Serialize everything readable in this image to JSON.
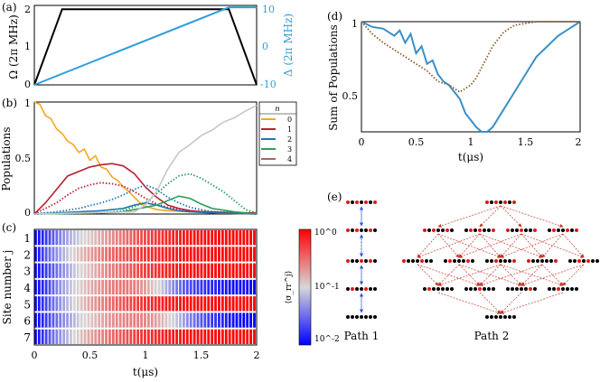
{
  "colors": {
    "omega": "#000000",
    "delta": "#2f9fdb",
    "pop0": "#f5a623",
    "pop1": "#b81f33",
    "pop2": "#1f77b4",
    "pop3": "#2e9e5a",
    "pop4": "#c7c7c7",
    "sum_blue": "#3a8fc8",
    "sum_brown": "#8b5a2b",
    "path1_arrow": "#3355dd",
    "path2_arrow": "#c0392b"
  },
  "panels": {
    "a": {
      "label": "(a)",
      "ylabel": "Ω (2π MHz)",
      "ylabel_right": "Δ (2π MHz)",
      "left_ticks": [
        "0",
        "1",
        "2"
      ],
      "right_ticks": [
        "-10",
        "0",
        "10"
      ]
    },
    "b": {
      "label": "(b)",
      "ylabel": "Populations",
      "yticks": [
        "0",
        "0.5",
        "1"
      ],
      "legend_title": "n",
      "legend": [
        "0",
        "1",
        "2",
        "3",
        "4"
      ]
    },
    "c": {
      "label": "(c)",
      "ylabel": "Site number j",
      "xlabel": "t(μs)",
      "xticks": [
        "0",
        "0.5",
        "1",
        "1.5",
        "2"
      ],
      "rows": [
        "1",
        "2",
        "3",
        "4",
        "5",
        "6",
        "7"
      ],
      "colorbar_label": "⟨σ_rr^j⟩",
      "colorbar_ticks": [
        "10^0",
        "10^-1",
        "10^-2"
      ]
    },
    "d": {
      "label": "(d)",
      "ylabel": "Sum of Populations",
      "xlabel": "t(μs)",
      "xticks": [
        "0",
        "0.5",
        "1",
        "1.5",
        "2"
      ],
      "yticks": [
        "0.5",
        "1"
      ]
    },
    "e": {
      "label": "(e)",
      "path1": "Path 1",
      "path2": "Path 2"
    }
  },
  "chart_data": [
    {
      "type": "line",
      "panel": "a",
      "title": "",
      "xlabel": "",
      "xlim": [
        0,
        2
      ],
      "series": [
        {
          "name": "Omega",
          "axis": "left",
          "ylim": [
            0,
            2.1
          ],
          "x": [
            0,
            0.25,
            1.75,
            2
          ],
          "y": [
            0,
            2,
            2,
            0
          ]
        },
        {
          "name": "Delta",
          "axis": "right",
          "ylim": [
            -10,
            10.5
          ],
          "x": [
            0,
            1.75,
            2
          ],
          "y": [
            -10,
            10,
            10
          ]
        }
      ]
    },
    {
      "type": "line",
      "panel": "b",
      "xlim": [
        0,
        2
      ],
      "ylim": [
        0,
        1
      ],
      "ylabel": "Populations",
      "series": [
        {
          "name": "0",
          "style": "solid",
          "x": [
            0,
            0.05,
            0.1,
            0.15,
            0.2,
            0.25,
            0.3,
            0.35,
            0.4,
            0.45,
            0.5,
            0.55,
            0.6,
            0.65,
            0.7,
            0.75,
            0.8,
            0.85,
            0.9,
            0.95,
            1.0,
            1.1,
            1.2,
            1.4,
            1.6,
            2
          ],
          "y": [
            1,
            0.98,
            0.88,
            0.85,
            0.76,
            0.72,
            0.65,
            0.62,
            0.55,
            0.58,
            0.48,
            0.52,
            0.42,
            0.4,
            0.33,
            0.3,
            0.24,
            0.2,
            0.15,
            0.1,
            0.07,
            0.04,
            0.03,
            0.02,
            0.01,
            0
          ]
        },
        {
          "name": "1",
          "style": "solid",
          "x": [
            0,
            0.1,
            0.2,
            0.3,
            0.4,
            0.5,
            0.6,
            0.7,
            0.8,
            0.9,
            1.0,
            1.1,
            1.2,
            1.3,
            1.4,
            1.5,
            1.6,
            1.8,
            2
          ],
          "y": [
            0,
            0.1,
            0.22,
            0.34,
            0.38,
            0.42,
            0.44,
            0.45,
            0.43,
            0.36,
            0.24,
            0.15,
            0.08,
            0.05,
            0.03,
            0.02,
            0.02,
            0.01,
            0.01
          ]
        },
        {
          "name": "1 (dotted)",
          "style": "dotted",
          "x": [
            0,
            0.1,
            0.2,
            0.3,
            0.4,
            0.5,
            0.6,
            0.7,
            0.8,
            0.9,
            1.0,
            1.1,
            1.2,
            1.4,
            1.6,
            2
          ],
          "y": [
            0,
            0.05,
            0.1,
            0.17,
            0.23,
            0.26,
            0.28,
            0.27,
            0.25,
            0.2,
            0.14,
            0.09,
            0.06,
            0.03,
            0.02,
            0.01
          ]
        },
        {
          "name": "2",
          "style": "solid",
          "x": [
            0,
            0.2,
            0.4,
            0.6,
            0.8,
            0.9,
            1.0,
            1.1,
            1.2,
            1.3,
            1.4,
            1.6,
            2
          ],
          "y": [
            0,
            0.01,
            0.02,
            0.03,
            0.05,
            0.08,
            0.1,
            0.08,
            0.05,
            0.03,
            0.02,
            0.01,
            0
          ]
        },
        {
          "name": "2 (dotted)",
          "style": "dotted",
          "x": [
            0,
            0.2,
            0.4,
            0.6,
            0.7,
            0.8,
            0.9,
            1.0,
            1.1,
            1.2,
            1.3,
            1.4,
            1.6,
            2
          ],
          "y": [
            0,
            0.02,
            0.05,
            0.1,
            0.13,
            0.17,
            0.22,
            0.26,
            0.22,
            0.15,
            0.1,
            0.06,
            0.02,
            0
          ]
        },
        {
          "name": "3",
          "style": "solid",
          "x": [
            0,
            0.6,
            0.8,
            0.9,
            1.0,
            1.1,
            1.2,
            1.3,
            1.4,
            1.5,
            1.6,
            1.8,
            2
          ],
          "y": [
            0,
            0.01,
            0.02,
            0.04,
            0.06,
            0.08,
            0.12,
            0.16,
            0.14,
            0.09,
            0.05,
            0.02,
            0
          ]
        },
        {
          "name": "3 (dotted)",
          "style": "dotted",
          "x": [
            0,
            0.6,
            0.8,
            1.0,
            1.1,
            1.2,
            1.3,
            1.4,
            1.5,
            1.6,
            1.7,
            1.8,
            1.9,
            2
          ],
          "y": [
            0,
            0.01,
            0.03,
            0.1,
            0.18,
            0.27,
            0.34,
            0.36,
            0.32,
            0.26,
            0.2,
            0.12,
            0.04,
            0.01
          ]
        },
        {
          "name": "4",
          "style": "solid",
          "x": [
            0,
            0.9,
            1.0,
            1.1,
            1.2,
            1.3,
            1.4,
            1.5,
            1.6,
            1.7,
            1.8,
            1.9,
            2
          ],
          "y": [
            0,
            0.02,
            0.08,
            0.2,
            0.4,
            0.55,
            0.62,
            0.7,
            0.75,
            0.82,
            0.86,
            0.92,
            0.97
          ]
        }
      ]
    },
    {
      "type": "heatmap",
      "panel": "c",
      "x_range": [
        0,
        2
      ],
      "rows": 7,
      "scale": "log",
      "clim": [
        0.005,
        1
      ],
      "x": [
        0,
        0.1,
        0.2,
        0.3,
        0.4,
        0.5,
        0.6,
        0.7,
        0.8,
        0.9,
        1.0,
        1.1,
        1.2,
        1.3,
        1.4,
        1.5,
        1.6,
        1.7,
        1.8,
        1.9,
        2.0
      ],
      "values": [
        [
          0.005,
          0.01,
          0.02,
          0.04,
          0.06,
          0.09,
          0.13,
          0.18,
          0.25,
          0.33,
          0.42,
          0.52,
          0.62,
          0.7,
          0.78,
          0.84,
          0.88,
          0.92,
          0.95,
          0.97,
          0.98
        ],
        [
          0.005,
          0.015,
          0.03,
          0.06,
          0.1,
          0.15,
          0.22,
          0.3,
          0.38,
          0.46,
          0.55,
          0.63,
          0.7,
          0.77,
          0.83,
          0.88,
          0.92,
          0.95,
          0.97,
          0.98,
          0.99
        ],
        [
          0.005,
          0.01,
          0.02,
          0.04,
          0.07,
          0.1,
          0.16,
          0.22,
          0.3,
          0.38,
          0.48,
          0.58,
          0.67,
          0.75,
          0.82,
          0.87,
          0.9,
          0.93,
          0.95,
          0.97,
          0.98
        ],
        [
          0.005,
          0.01,
          0.025,
          0.05,
          0.08,
          0.12,
          0.17,
          0.22,
          0.25,
          0.22,
          0.15,
          0.08,
          0.04,
          0.02,
          0.012,
          0.01,
          0.008,
          0.007,
          0.006,
          0.006,
          0.005
        ],
        [
          0.005,
          0.012,
          0.025,
          0.05,
          0.09,
          0.14,
          0.2,
          0.28,
          0.36,
          0.45,
          0.55,
          0.64,
          0.72,
          0.78,
          0.84,
          0.88,
          0.92,
          0.95,
          0.97,
          0.98,
          0.99
        ],
        [
          0.005,
          0.01,
          0.02,
          0.035,
          0.06,
          0.09,
          0.13,
          0.17,
          0.2,
          0.22,
          0.2,
          0.15,
          0.09,
          0.05,
          0.025,
          0.015,
          0.01,
          0.008,
          0.006,
          0.005,
          0.005
        ],
        [
          0.005,
          0.012,
          0.025,
          0.05,
          0.09,
          0.14,
          0.2,
          0.28,
          0.36,
          0.45,
          0.55,
          0.64,
          0.72,
          0.78,
          0.84,
          0.88,
          0.92,
          0.95,
          0.97,
          0.98,
          0.99
        ]
      ]
    },
    {
      "type": "line",
      "panel": "d",
      "xlim": [
        0,
        2
      ],
      "ylim": [
        0.25,
        1
      ],
      "ylabel": "Sum of Populations",
      "xlabel": "t(μs)",
      "series": [
        {
          "name": "solid",
          "style": "solid",
          "x": [
            0,
            0.1,
            0.2,
            0.3,
            0.35,
            0.4,
            0.45,
            0.5,
            0.55,
            0.6,
            0.65,
            0.7,
            0.75,
            0.8,
            0.85,
            0.9,
            0.95,
            1.0,
            1.05,
            1.1,
            1.15,
            1.2,
            1.3,
            1.4,
            1.5,
            1.6,
            1.7,
            1.8,
            1.9,
            2
          ],
          "y": [
            1,
            0.97,
            0.96,
            0.92,
            0.95,
            0.88,
            0.93,
            0.82,
            0.86,
            0.76,
            0.78,
            0.7,
            0.66,
            0.64,
            0.6,
            0.56,
            0.48,
            0.44,
            0.4,
            0.37,
            0.37,
            0.4,
            0.5,
            0.6,
            0.7,
            0.8,
            0.86,
            0.92,
            0.96,
            1
          ]
        },
        {
          "name": "dotted",
          "style": "dotted",
          "x": [
            0,
            0.1,
            0.2,
            0.3,
            0.4,
            0.5,
            0.6,
            0.7,
            0.8,
            0.9,
            1.0,
            1.05,
            1.1,
            1.15,
            1.2,
            1.3,
            1.4,
            1.5,
            1.6,
            1.8,
            2
          ],
          "y": [
            1,
            0.93,
            0.88,
            0.84,
            0.8,
            0.76,
            0.72,
            0.66,
            0.64,
            0.6,
            0.64,
            0.68,
            0.74,
            0.8,
            0.86,
            0.94,
            0.98,
            0.99,
            1,
            1,
            1
          ]
        }
      ]
    }
  ]
}
